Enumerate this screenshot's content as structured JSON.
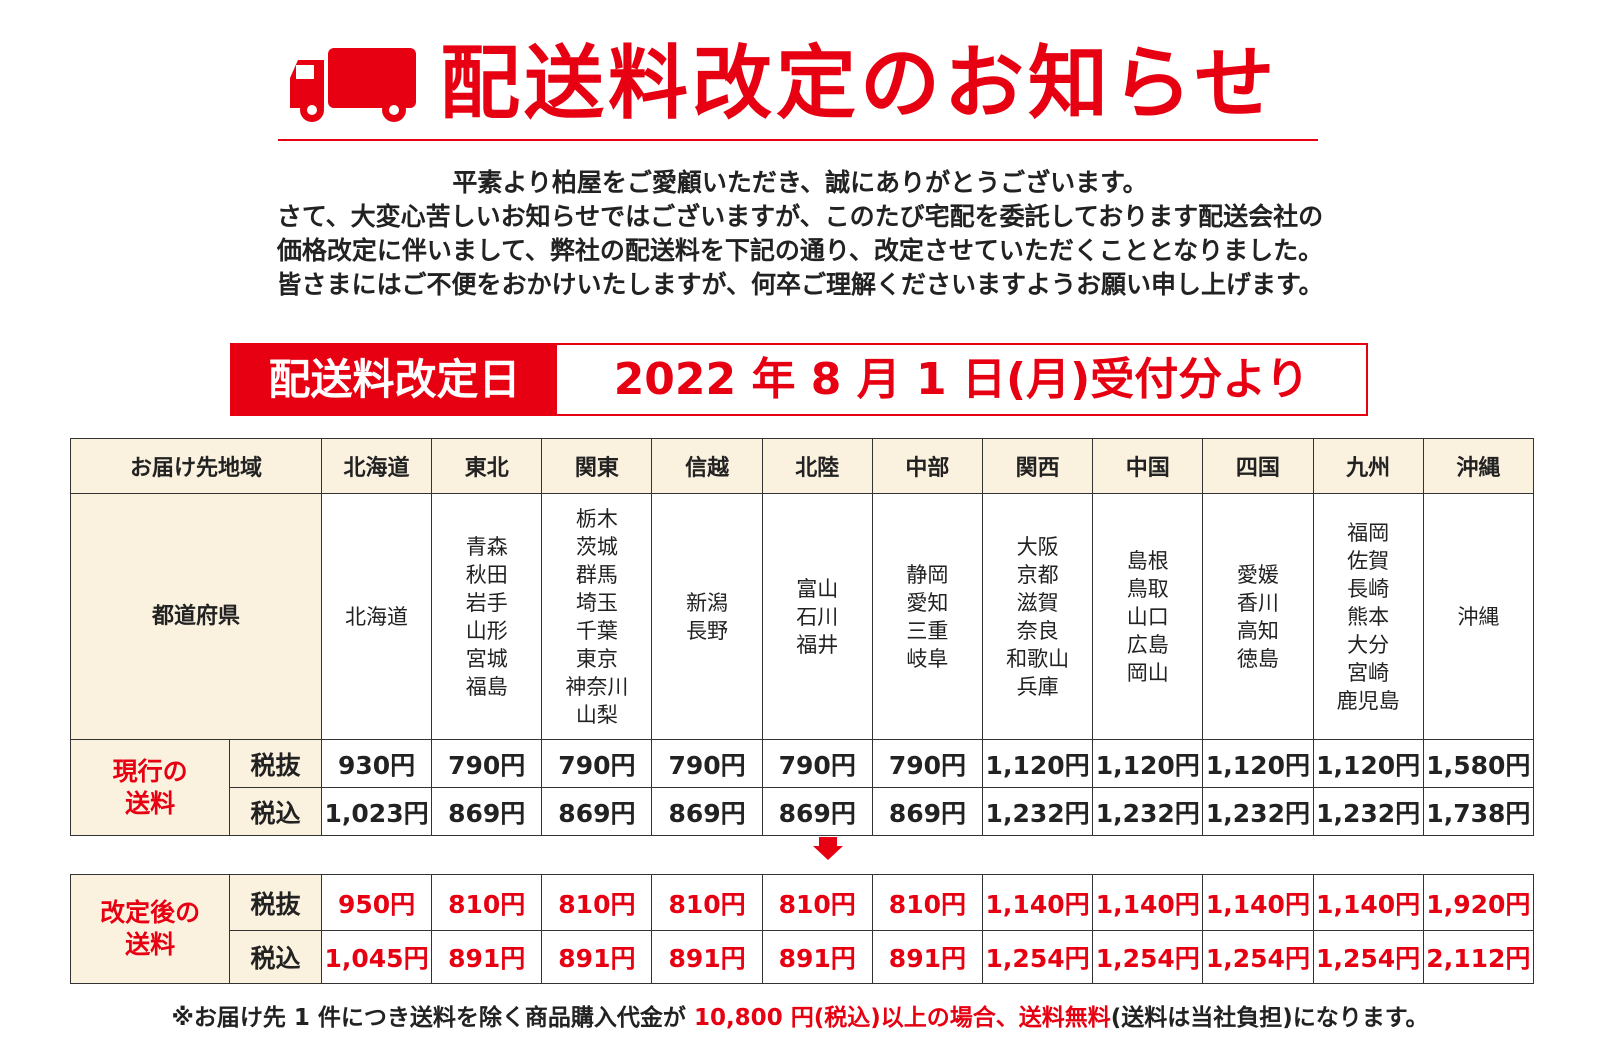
{
  "header": {
    "title": "配送料改定のお知らせ",
    "icon": "truck-icon",
    "accent_color": "#e60012"
  },
  "intro": [
    "平素より柏屋をご愛顧いただき、誠にありがとうございます。",
    "さて、大変心苦しいお知らせではございますが、このたび宅配を委託しております配送会社の",
    "価格改定に伴いまして、弊社の配送料を下記の通り、改定させていただくこととなりました。",
    "皆さまにはご不便をおかけいたしますが、何卒ご理解くださいますようお願い申し上げます。"
  ],
  "date_bar": {
    "label": "配送料改定日",
    "value": "2022 年 8 月 1 日(月)受付分より"
  },
  "table": {
    "region_header": "お届け先地域",
    "prefecture_header": "都道府県",
    "regions": [
      "北海道",
      "東北",
      "関東",
      "信越",
      "北陸",
      "中部",
      "関西",
      "中国",
      "四国",
      "九州",
      "沖縄"
    ],
    "prefectures": [
      [
        "北海道"
      ],
      [
        "青森",
        "秋田",
        "岩手",
        "山形",
        "宮城",
        "福島"
      ],
      [
        "栃木",
        "茨城",
        "群馬",
        "埼玉",
        "千葉",
        "東京",
        "神奈川",
        "山梨"
      ],
      [
        "新潟",
        "長野"
      ],
      [
        "富山",
        "石川",
        "福井"
      ],
      [
        "静岡",
        "愛知",
        "三重",
        "岐阜"
      ],
      [
        "大阪",
        "京都",
        "滋賀",
        "奈良",
        "和歌山",
        "兵庫"
      ],
      [
        "島根",
        "鳥取",
        "山口",
        "広島",
        "岡山"
      ],
      [
        "愛媛",
        "香川",
        "高知",
        "徳島"
      ],
      [
        "福岡",
        "佐賀",
        "長崎",
        "熊本",
        "大分",
        "宮崎",
        "鹿児島"
      ],
      [
        "沖縄"
      ]
    ],
    "current": {
      "label_line1": "現行の",
      "label_line2": "送料",
      "tax_excl_label": "税抜",
      "tax_incl_label": "税込",
      "tax_excl": [
        "930円",
        "790円",
        "790円",
        "790円",
        "790円",
        "790円",
        "1,120円",
        "1,120円",
        "1,120円",
        "1,120円",
        "1,580円"
      ],
      "tax_incl": [
        "1,023円",
        "869円",
        "869円",
        "869円",
        "869円",
        "869円",
        "1,232円",
        "1,232円",
        "1,232円",
        "1,232円",
        "1,738円"
      ]
    },
    "revised": {
      "label_line1": "改定後の",
      "label_line2": "送料",
      "tax_excl_label": "税抜",
      "tax_incl_label": "税込",
      "tax_excl": [
        "950円",
        "810円",
        "810円",
        "810円",
        "810円",
        "810円",
        "1,140円",
        "1,140円",
        "1,140円",
        "1,140円",
        "1,920円"
      ],
      "tax_incl": [
        "1,045円",
        "891円",
        "891円",
        "891円",
        "891円",
        "891円",
        "1,254円",
        "1,254円",
        "1,254円",
        "1,254円",
        "2,112円"
      ]
    }
  },
  "note": {
    "prefix": "※お届け先 1 件につき送料を除く商品購入代金が",
    "highlight": "10,800 円(税込)以上の場合、送料無料",
    "suffix": "(送料は当社負担)になります。"
  }
}
